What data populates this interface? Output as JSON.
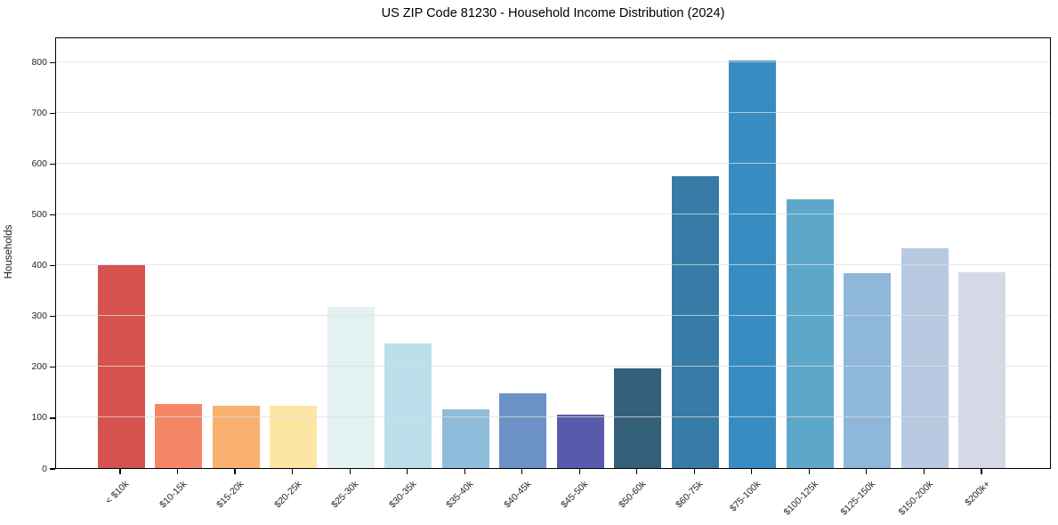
{
  "chart_data": {
    "type": "bar",
    "title": "US ZIP Code 81230 - Household Income Distribution (2024)",
    "xlabel": "",
    "ylabel": "Households",
    "categories": [
      "< $10k",
      "$10-15k",
      "$15-20k",
      "$20-25k",
      "$25-30k",
      "$30-35k",
      "$35-40k",
      "$40-45k",
      "$45-50k",
      "$50-60k",
      "$60-75k",
      "$75-100k",
      "$100-125k",
      "$125-150k",
      "$150-200k",
      "$200k+"
    ],
    "values": [
      400,
      127,
      123,
      122,
      318,
      245,
      115,
      148,
      105,
      196,
      575,
      803,
      529,
      384,
      433,
      386
    ],
    "bar_colors": [
      "#d5534f",
      "#f58767",
      "#fab06e",
      "#fde6a3",
      "#e4f1f3",
      "#bcdfec",
      "#8fbcda",
      "#6d93c6",
      "#5a5aac",
      "#35607a",
      "#377ba6",
      "#378cc2",
      "#5da7ca",
      "#8fb7d9",
      "#b8cae1",
      "#d7d8e6"
    ],
    "ylim": [
      0,
      850
    ],
    "yticks": [
      0,
      100,
      200,
      300,
      400,
      500,
      600,
      700,
      800
    ],
    "grid": "horizontal-light",
    "legend": "none",
    "background": "#ffffff",
    "axis_color": "#000000",
    "grid_color": "#dedede"
  }
}
